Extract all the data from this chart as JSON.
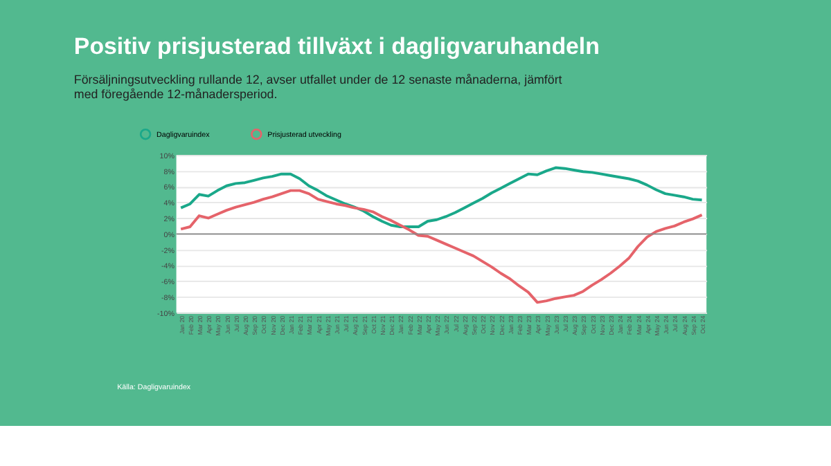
{
  "chart_data": {
    "type": "line",
    "title": "Positiv prisjusterad tillväxt i dagligvaruhandeln",
    "subtitle": "Försäljningsutveckling rullande 12, avser utfallet under de 12 senaste månaderna, jämfört med föregående 12-månadersperiod.",
    "categories": [
      "Jan 20",
      "Feb 20",
      "Mar 20",
      "Apr 20",
      "May 20",
      "Jun 20",
      "Jul 20",
      "Aug 20",
      "Sep 20",
      "Oct 20",
      "Nov 20",
      "Dec 20",
      "Jan 21",
      "Feb 21",
      "Mar 21",
      "Apr 21",
      "May 21",
      "Jun 21",
      "Jul 21",
      "Aug 21",
      "Sep 21",
      "Oct 21",
      "Nov 21",
      "Dec 21",
      "Jan 22",
      "Feb 22",
      "Mar 22",
      "Apr 22",
      "May 22",
      "Jun 22",
      "Jul 22",
      "Aug 22",
      "Sep 22",
      "Oct 22",
      "Nov 22",
      "Dec 22",
      "Jan 23",
      "Feb 23",
      "Mar 23",
      "Apr 23",
      "May 23",
      "Jun 23",
      "Jul 23",
      "Aug 23",
      "Sep 23",
      "Oct 23",
      "Nov 23",
      "Dec 23",
      "Jan 24",
      "Feb 24",
      "Mar 24",
      "Apr 24",
      "May 24",
      "Jun 24",
      "Jul 24",
      "Aug 24",
      "Sep 24",
      "Oct 24"
    ],
    "series": [
      {
        "name": "Dagligvaruindex",
        "color": "#1aa88a",
        "values": [
          3.3,
          3.8,
          5.0,
          4.8,
          5.5,
          6.1,
          6.4,
          6.5,
          6.8,
          7.1,
          7.3,
          7.6,
          7.6,
          7.0,
          6.1,
          5.5,
          4.8,
          4.3,
          3.8,
          3.4,
          2.9,
          2.2,
          1.6,
          1.1,
          0.9,
          0.9,
          0.9,
          1.6,
          1.8,
          2.2,
          2.7,
          3.3,
          3.9,
          4.5,
          5.2,
          5.8,
          6.4,
          7.0,
          7.6,
          7.5,
          8.0,
          8.4,
          8.3,
          8.1,
          7.9,
          7.8,
          7.6,
          7.4,
          7.2,
          7.0,
          6.7,
          6.2,
          5.6,
          5.1,
          4.9,
          4.7,
          4.4,
          4.3
        ]
      },
      {
        "name": "Prisjusterad utveckling",
        "color": "#e5636a",
        "values": [
          0.6,
          0.9,
          2.3,
          2.0,
          2.5,
          3.0,
          3.4,
          3.7,
          4.0,
          4.4,
          4.7,
          5.1,
          5.5,
          5.5,
          5.1,
          4.4,
          4.1,
          3.8,
          3.6,
          3.3,
          3.1,
          2.8,
          2.2,
          1.7,
          1.1,
          0.5,
          -0.2,
          -0.3,
          -0.8,
          -1.3,
          -1.8,
          -2.3,
          -2.8,
          -3.5,
          -4.2,
          -5.0,
          -5.7,
          -6.6,
          -7.4,
          -8.7,
          -8.5,
          -8.2,
          -8.0,
          -7.8,
          -7.3,
          -6.5,
          -5.8,
          -5.0,
          -4.1,
          -3.1,
          -1.6,
          -0.4,
          0.3,
          0.7,
          1.0,
          1.5,
          1.9,
          2.4
        ]
      }
    ],
    "ylim": [
      -10,
      10
    ],
    "yticks": [
      {
        "value": -10,
        "label": "-10%"
      },
      {
        "value": -8,
        "label": "-8%"
      },
      {
        "value": -6,
        "label": "-6%"
      },
      {
        "value": -4,
        "label": "-4%"
      },
      {
        "value": -2,
        "label": "-2%"
      },
      {
        "value": 0,
        "label": "0%"
      },
      {
        "value": 2,
        "label": "2%"
      },
      {
        "value": 4,
        "label": "4%"
      },
      {
        "value": 6,
        "label": "6%"
      },
      {
        "value": 8,
        "label": "8%"
      },
      {
        "value": 10,
        "label": "10%"
      }
    ],
    "ref_lines": [
      {
        "axis": "y",
        "value": 0,
        "color": "#888888"
      }
    ],
    "grid": "y",
    "legend": "top left",
    "marker": "none",
    "line_style": "solid",
    "annotations": [
      "Källa: Dagligvaruindex"
    ]
  }
}
